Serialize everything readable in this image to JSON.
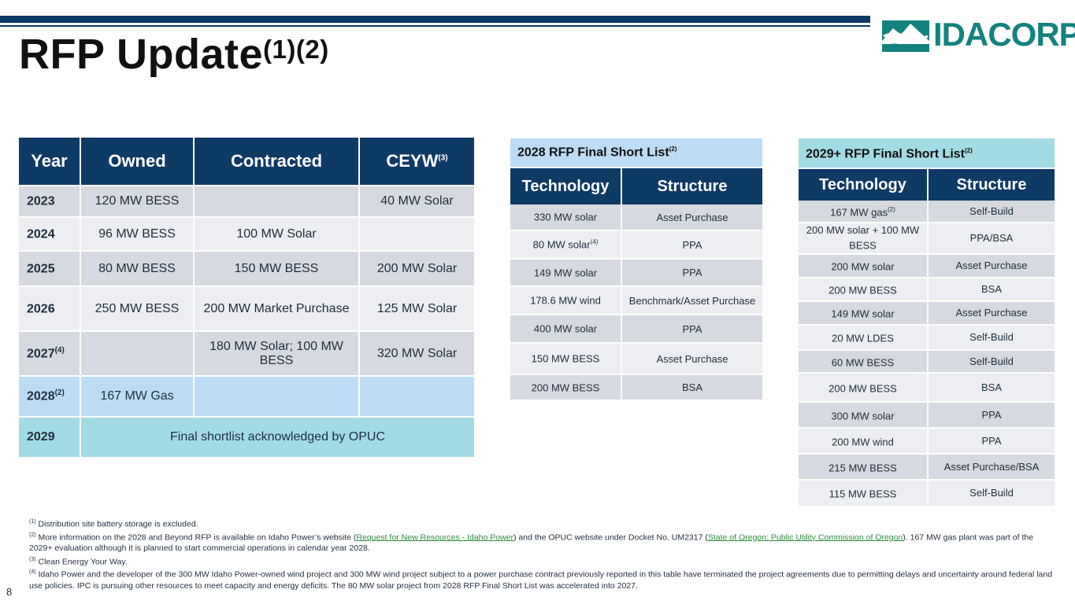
{
  "slide": {
    "title": "RFP Update",
    "title_sup": "(1)(2)",
    "page_number": "8",
    "logo_text": "IDACORP",
    "logo_reg": "®"
  },
  "colors": {
    "navy": "#0e3a66",
    "light_blue": "#bcdcf5",
    "teal": "#a3dbe5",
    "gray": "#d6d9df",
    "logo_teal": "#13827f",
    "link_green": "#2e8b3e"
  },
  "main_table": {
    "headers": [
      "Year",
      "Owned",
      "Contracted",
      "CEYW"
    ],
    "ceyw_sup": "(3)",
    "rows": [
      {
        "year": "2023",
        "year_sup": "",
        "owned": "120 MW BESS",
        "contracted": "",
        "ceyw": "40 MW Solar"
      },
      {
        "year": "2024",
        "year_sup": "",
        "owned": "96 MW BESS",
        "contracted": "100 MW Solar",
        "ceyw": ""
      },
      {
        "year": "2025",
        "year_sup": "",
        "owned": "80 MW BESS",
        "contracted": "150 MW BESS",
        "ceyw": "200 MW Solar"
      },
      {
        "year": "2026",
        "year_sup": "",
        "owned": "250 MW BESS",
        "contracted": "200 MW Market Purchase",
        "ceyw": "125 MW Solar"
      },
      {
        "year": "2027",
        "year_sup": "(4)",
        "owned": "",
        "contracted": "180 MW Solar; 100 MW BESS",
        "ceyw": "320 MW Solar"
      },
      {
        "year": "2028",
        "year_sup": "(2)",
        "owned": "167 MW Gas",
        "contracted": "",
        "ceyw": ""
      }
    ],
    "final_row": {
      "year": "2029",
      "text": "Final shortlist acknowledged by OPUC"
    }
  },
  "table_2028": {
    "caption": "2028 RFP Final Short List",
    "caption_sup": "(2)",
    "headers": [
      "Technology",
      "Structure"
    ],
    "rows": [
      {
        "tech": "330 MW solar",
        "tech_sup": "",
        "structure": "Asset Purchase"
      },
      {
        "tech": "80 MW solar",
        "tech_sup": "(4)",
        "structure": "PPA"
      },
      {
        "tech": "149 MW solar",
        "tech_sup": "",
        "structure": "PPA"
      },
      {
        "tech": "178.6 MW wind",
        "tech_sup": "",
        "structure": "Benchmark/Asset Purchase"
      },
      {
        "tech": "400 MW solar",
        "tech_sup": "",
        "structure": "PPA"
      },
      {
        "tech": "150 MW BESS",
        "tech_sup": "",
        "structure": "Asset Purchase"
      },
      {
        "tech": "200 MW BESS",
        "tech_sup": "",
        "structure": "BSA"
      }
    ]
  },
  "table_2029": {
    "caption": "2029+ RFP Final Short List",
    "caption_sup": "(2)",
    "headers": [
      "Technology",
      "Structure"
    ],
    "rows": [
      {
        "tech": "167 MW gas",
        "tech_sup": "(2)",
        "structure": "Self-Build"
      },
      {
        "tech": "200 MW solar + 100 MW BESS",
        "tech_sup": "",
        "structure": "PPA/BSA"
      },
      {
        "tech": "200 MW solar",
        "tech_sup": "",
        "structure": "Asset Purchase"
      },
      {
        "tech": "200 MW BESS",
        "tech_sup": "",
        "structure": "BSA"
      },
      {
        "tech": "149 MW solar",
        "tech_sup": "",
        "structure": "Asset Purchase"
      },
      {
        "tech": "20 MW LDES",
        "tech_sup": "",
        "structure": "Self-Build"
      },
      {
        "tech": "60 MW BESS",
        "tech_sup": "",
        "structure": "Self-Build"
      },
      {
        "tech": "200 MW BESS",
        "tech_sup": "",
        "structure": "BSA"
      },
      {
        "tech": "300 MW solar",
        "tech_sup": "",
        "structure": "PPA"
      },
      {
        "tech": "200 MW wind",
        "tech_sup": "",
        "structure": "PPA"
      },
      {
        "tech": "215 MW BESS",
        "tech_sup": "",
        "structure": "Asset Purchase/BSA"
      },
      {
        "tech": "115 MW BESS",
        "tech_sup": "",
        "structure": "Self-Build"
      }
    ]
  },
  "footnotes": {
    "n1_sup": "(1)",
    "n1": " Distribution site battery storage is excluded.",
    "n2_sup": "(2)",
    "n2_a": " More information on the 2028 and Beyond RFP is available on Idaho Power’s website (",
    "n2_link1": "Request for New Resources - Idaho Power",
    "n2_b": ") and the OPUC website under Docket No. UM2317 (",
    "n2_link2": "State of Oregon: Public Utility Commission of Oregon",
    "n2_c": ").  167 MW gas plant was part of the 2029+ evaluation although it is planned to start commercial operations in calendar year 2028.",
    "n3_sup": "(3)",
    "n3": " Clean Energy Your Way.",
    "n4_sup": "(4)",
    "n4": " Idaho Power and the developer of the 300 MW Idaho Power-owned wind project and 300 MW wind project subject to a power purchase contract previously reported in this table have terminated the project agreements due to permitting delays and uncertainty around federal land use policies.  IPC is pursuing other resources to meet capacity and energy deficits.  The 80 MW solar project from 2028 RFP Final Short List was accelerated into 2027."
  }
}
